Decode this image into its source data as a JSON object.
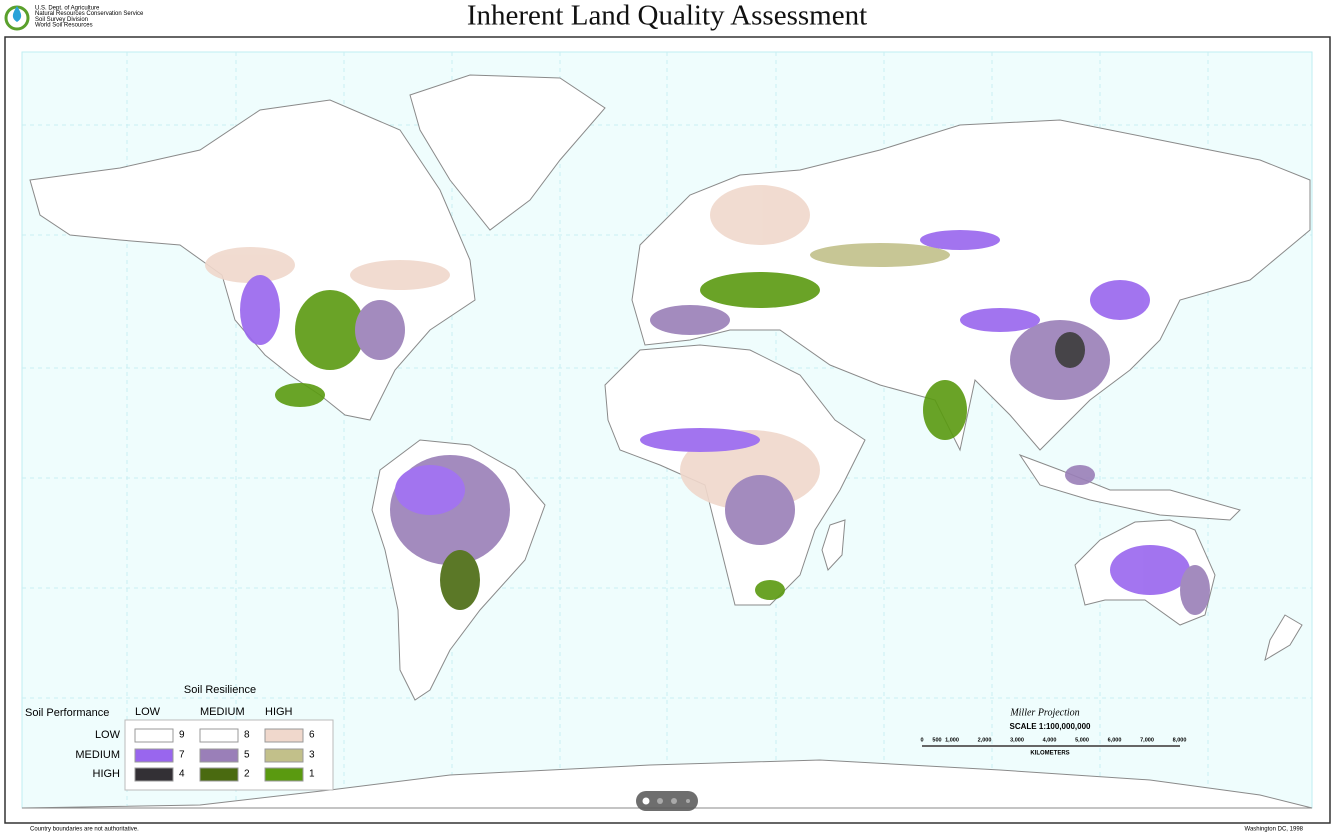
{
  "header": {
    "agency": [
      "U.S. Dept. of Agriculture",
      "Natural Resources Conservation Service",
      "Soil Survey Division",
      "World Soil Resources"
    ],
    "title": "Inherent Land Quality Assessment"
  },
  "legend": {
    "title": "Soil Resilience",
    "row_title": "Soil Performance",
    "columns": [
      "LOW",
      "MEDIUM",
      "HIGH"
    ],
    "rows": [
      "LOW",
      "MEDIUM",
      "HIGH"
    ],
    "cells": [
      [
        {
          "class": 9,
          "color": "#ffffff"
        },
        {
          "class": 8,
          "color": "#ffffff"
        },
        {
          "class": 6,
          "color": "#f0d8cc"
        }
      ],
      [
        {
          "class": 7,
          "color": "#9966ee"
        },
        {
          "class": 5,
          "color": "#9a7fb8"
        },
        {
          "class": 3,
          "color": "#c2c08a"
        }
      ],
      [
        {
          "class": 4,
          "color": "#333035"
        },
        {
          "class": 2,
          "color": "#4a6a10"
        },
        {
          "class": 1,
          "color": "#5a9a10"
        }
      ]
    ]
  },
  "scale": {
    "projection": "Miller Projection",
    "scale": "SCALE 1:100,000,000",
    "ticks": [
      "0",
      "500",
      "1,000",
      "2,000",
      "3,000",
      "4,000",
      "5,000",
      "6,000",
      "7,000",
      "8,000"
    ],
    "unit": "KILOMETERS"
  },
  "footer": {
    "note": "Country boundaries are not authoritative.",
    "place_date": "Washington DC, 1998"
  }
}
